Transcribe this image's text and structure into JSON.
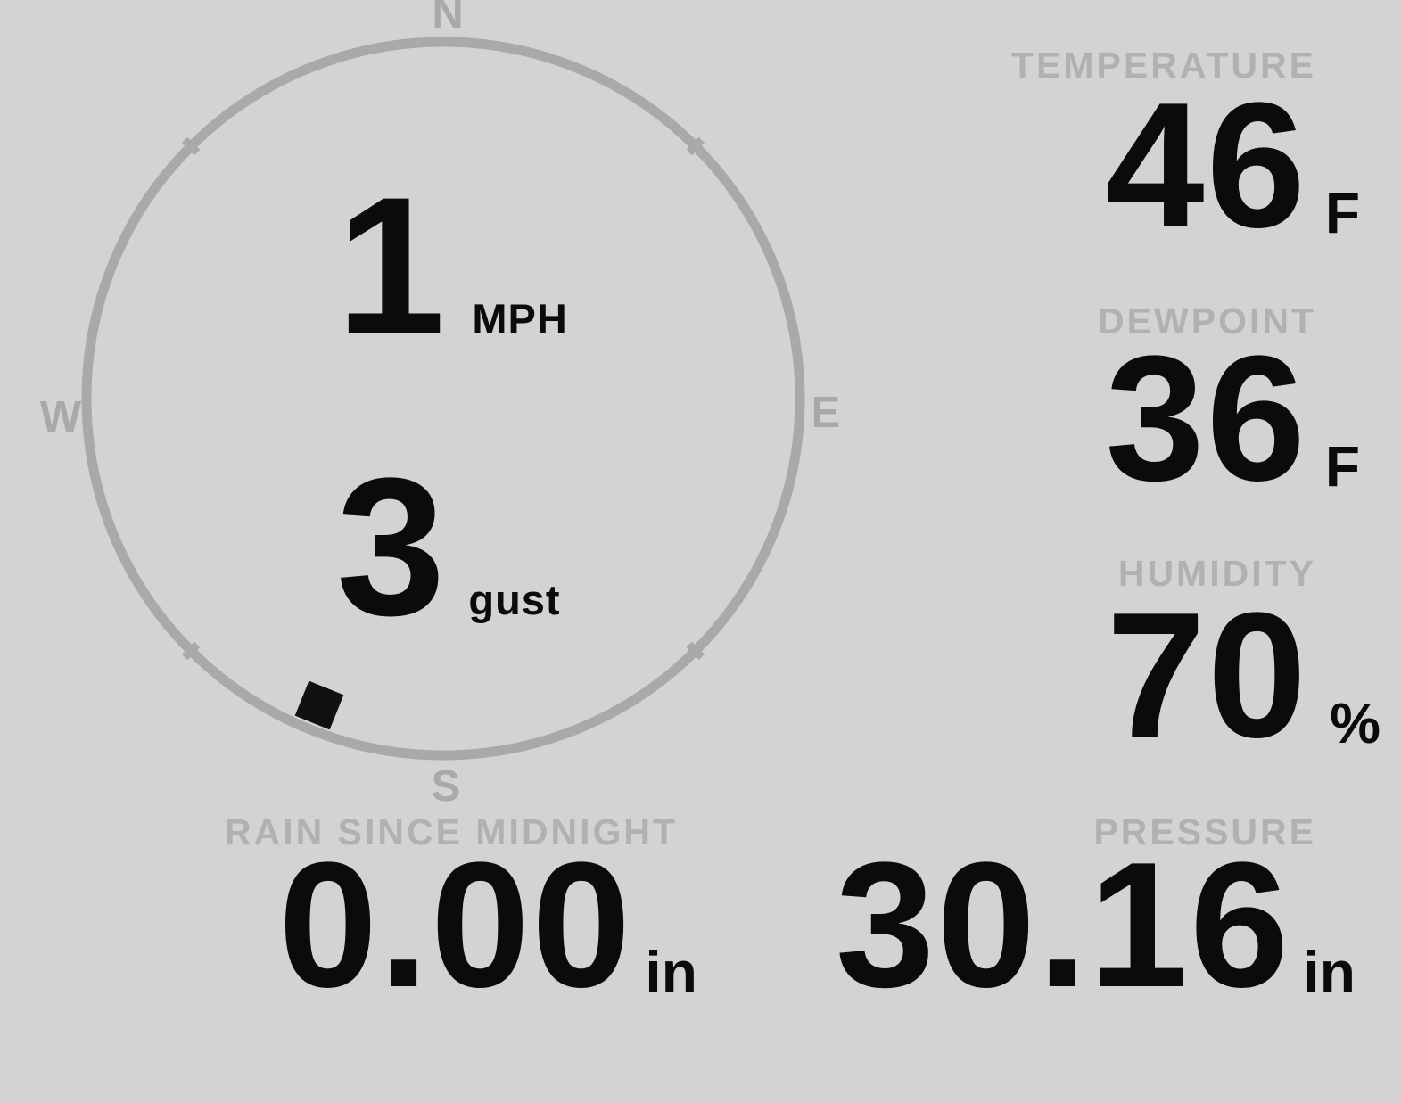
{
  "colors": {
    "background": "#d3d3d3",
    "dial": "#a9a9a9",
    "label": "#b1b1b1",
    "value": "#0b0b0b"
  },
  "wind": {
    "speed": "1",
    "speed_unit": "MPH",
    "gust": "3",
    "gust_unit": "gust",
    "direction_degrees": 202,
    "compass": {
      "north": "N",
      "east": "E",
      "south": "S",
      "west": "W"
    }
  },
  "metrics": {
    "temperature": {
      "label": "TEMPERATURE",
      "value": "46",
      "unit": "F"
    },
    "dewpoint": {
      "label": "DEWPOINT",
      "value": "36",
      "unit": "F"
    },
    "humidity": {
      "label": "HUMIDITY",
      "value": "70",
      "unit": "%"
    },
    "rain": {
      "label": "RAIN SINCE MIDNIGHT",
      "value": "0.00",
      "unit": "in"
    },
    "pressure": {
      "label": "PRESSURE",
      "value": "30.16",
      "unit": "in"
    }
  }
}
